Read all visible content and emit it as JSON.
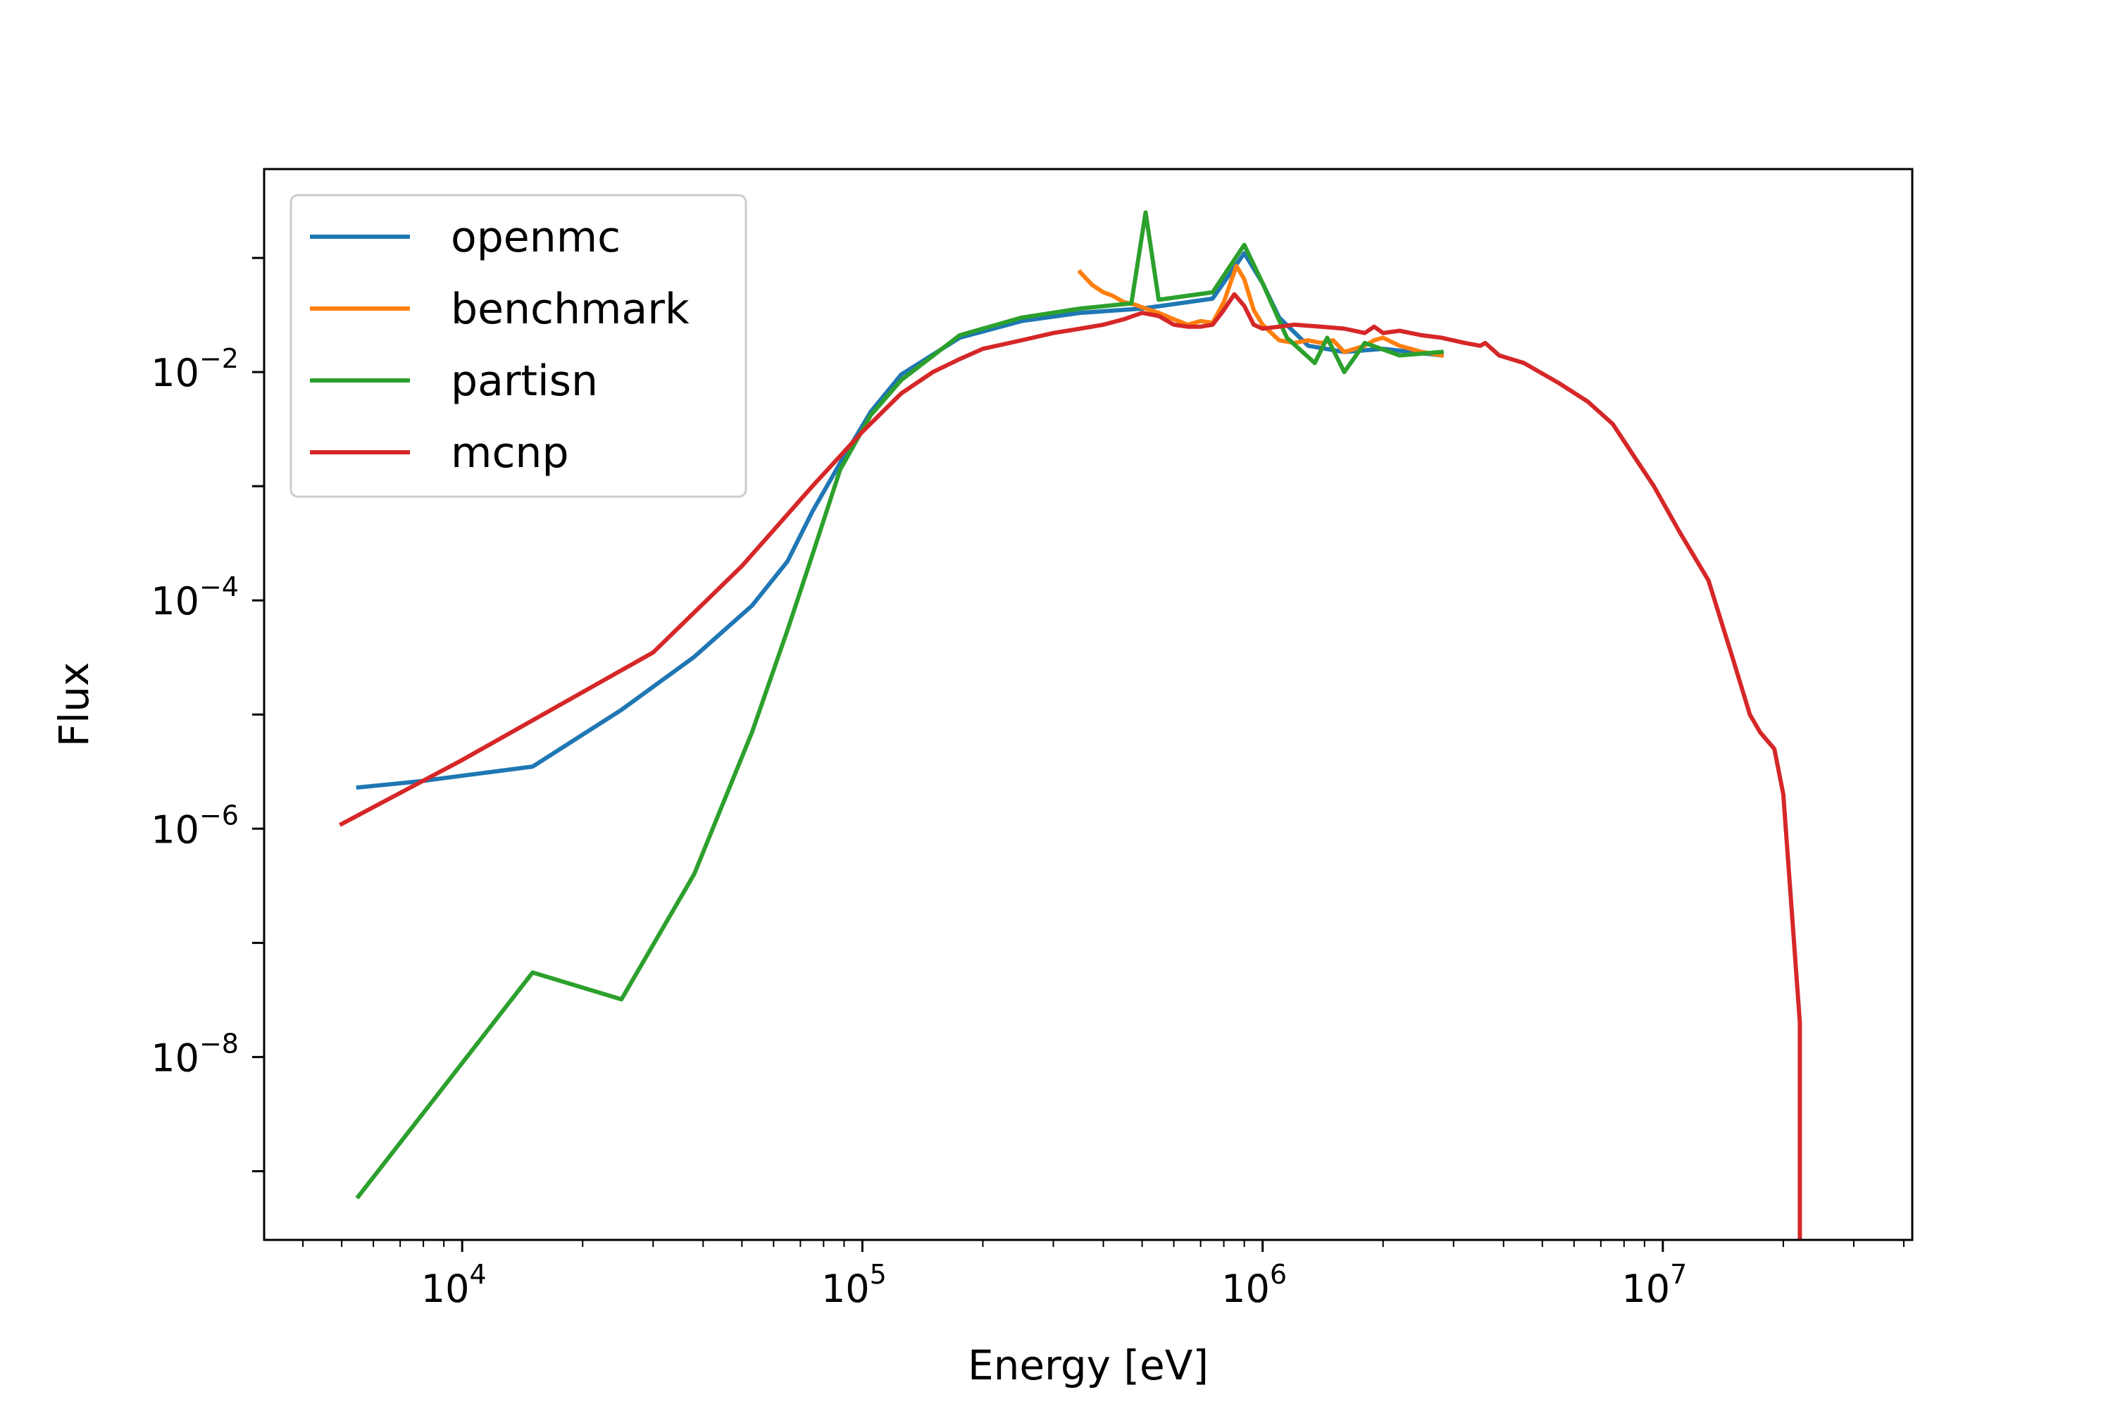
{
  "chart_data": {
    "type": "line",
    "title": "",
    "xlabel": "Energy [eV]",
    "ylabel": "Flux",
    "xscale": "log",
    "yscale": "log",
    "xlim": [
      3200,
      42000000
    ],
    "ylim": [
      2.5e-10,
      0.6
    ],
    "grid": false,
    "legend_position": "top-left",
    "x_ticks": [
      {
        "value": 10000,
        "base": "10",
        "exp": "4"
      },
      {
        "value": 100000,
        "base": "10",
        "exp": "5"
      },
      {
        "value": 1000000,
        "base": "10",
        "exp": "6"
      },
      {
        "value": 10000000,
        "base": "10",
        "exp": "7"
      }
    ],
    "y_ticks": [
      {
        "value": 0.01,
        "base": "10",
        "exp": "−2"
      },
      {
        "value": 0.0001,
        "base": "10",
        "exp": "−4"
      },
      {
        "value": 1e-06,
        "base": "10",
        "exp": "−6"
      },
      {
        "value": 1e-08,
        "base": "10",
        "exp": "−8"
      }
    ],
    "series": [
      {
        "name": "openmc",
        "color": "#1f77b4",
        "points": [
          [
            5500,
            2.3e-06
          ],
          [
            7800,
            2.6e-06
          ],
          [
            15000,
            3.5e-06
          ],
          [
            25000,
            1.1e-05
          ],
          [
            38000,
            3.2e-05
          ],
          [
            53000,
            9e-05
          ],
          [
            65000,
            0.00022
          ],
          [
            75000,
            0.0006
          ],
          [
            88000,
            0.0016
          ],
          [
            105000,
            0.0045
          ],
          [
            125000,
            0.0095
          ],
          [
            175000,
            0.02
          ],
          [
            250000,
            0.028
          ],
          [
            350000,
            0.033
          ],
          [
            500000,
            0.036
          ],
          [
            750000,
            0.044
          ],
          [
            900000,
            0.11
          ],
          [
            1000000,
            0.06
          ],
          [
            1100000,
            0.03
          ],
          [
            1300000,
            0.017
          ],
          [
            1600000,
            0.015
          ],
          [
            2000000,
            0.016
          ],
          [
            2800000,
            0.014
          ]
        ]
      },
      {
        "name": "benchmark",
        "color": "#ff7f0e",
        "points": [
          [
            350000,
            0.075
          ],
          [
            375000,
            0.058
          ],
          [
            400000,
            0.05
          ],
          [
            420000,
            0.047
          ],
          [
            450000,
            0.041
          ],
          [
            480000,
            0.039
          ],
          [
            510000,
            0.036
          ],
          [
            550000,
            0.033
          ],
          [
            600000,
            0.029
          ],
          [
            650000,
            0.026
          ],
          [
            700000,
            0.028
          ],
          [
            750000,
            0.027
          ],
          [
            800000,
            0.041
          ],
          [
            860000,
            0.085
          ],
          [
            900000,
            0.065
          ],
          [
            950000,
            0.035
          ],
          [
            1000000,
            0.026
          ],
          [
            1100000,
            0.019
          ],
          [
            1200000,
            0.018
          ],
          [
            1300000,
            0.019
          ],
          [
            1400000,
            0.018
          ],
          [
            1500000,
            0.019
          ],
          [
            1600000,
            0.015
          ],
          [
            1700000,
            0.016
          ],
          [
            1800000,
            0.017
          ],
          [
            1900000,
            0.019
          ],
          [
            2000000,
            0.02
          ],
          [
            2200000,
            0.017
          ],
          [
            2500000,
            0.015
          ],
          [
            2800000,
            0.014
          ]
        ]
      },
      {
        "name": "partisn",
        "color": "#2ca02c",
        "points": [
          [
            5500,
            6e-10
          ],
          [
            15000,
            5.5e-08
          ],
          [
            25000,
            3.2e-08
          ],
          [
            38000,
            4e-07
          ],
          [
            53000,
            7e-06
          ],
          [
            65000,
            5.5e-05
          ],
          [
            75000,
            0.00025
          ],
          [
            88000,
            0.0014
          ],
          [
            105000,
            0.0042
          ],
          [
            125000,
            0.0085
          ],
          [
            175000,
            0.021
          ],
          [
            250000,
            0.03
          ],
          [
            350000,
            0.036
          ],
          [
            470000,
            0.04
          ],
          [
            510000,
            0.25
          ],
          [
            550000,
            0.043
          ],
          [
            750000,
            0.05
          ],
          [
            900000,
            0.13
          ],
          [
            1000000,
            0.06
          ],
          [
            1150000,
            0.02
          ],
          [
            1350000,
            0.012
          ],
          [
            1450000,
            0.02
          ],
          [
            1600000,
            0.01
          ],
          [
            1800000,
            0.018
          ],
          [
            2200000,
            0.014
          ],
          [
            2800000,
            0.015
          ]
        ]
      },
      {
        "name": "mcnp",
        "color": "#d62728",
        "points": [
          [
            5000,
            1.1e-06
          ],
          [
            10000,
            4e-06
          ],
          [
            30000,
            3.5e-05
          ],
          [
            50000,
            0.0002
          ],
          [
            75000,
            0.001
          ],
          [
            100000,
            0.003
          ],
          [
            125000,
            0.0065
          ],
          [
            150000,
            0.01
          ],
          [
            175000,
            0.013
          ],
          [
            200000,
            0.016
          ],
          [
            250000,
            0.019
          ],
          [
            300000,
            0.022
          ],
          [
            350000,
            0.024
          ],
          [
            400000,
            0.026
          ],
          [
            450000,
            0.029
          ],
          [
            500000,
            0.033
          ],
          [
            550000,
            0.031
          ],
          [
            600000,
            0.026
          ],
          [
            650000,
            0.025
          ],
          [
            700000,
            0.025
          ],
          [
            750000,
            0.026
          ],
          [
            800000,
            0.035
          ],
          [
            850000,
            0.048
          ],
          [
            900000,
            0.038
          ],
          [
            950000,
            0.026
          ],
          [
            1000000,
            0.024
          ],
          [
            1100000,
            0.025
          ],
          [
            1200000,
            0.026
          ],
          [
            1400000,
            0.025
          ],
          [
            1600000,
            0.024
          ],
          [
            1800000,
            0.022
          ],
          [
            1900000,
            0.025
          ],
          [
            2000000,
            0.022
          ],
          [
            2200000,
            0.023
          ],
          [
            2500000,
            0.021
          ],
          [
            2800000,
            0.02
          ],
          [
            3200000,
            0.018
          ],
          [
            3500000,
            0.017
          ],
          [
            3600000,
            0.018
          ],
          [
            3900000,
            0.014
          ],
          [
            4500000,
            0.012
          ],
          [
            5500000,
            0.008
          ],
          [
            6500000,
            0.0055
          ],
          [
            7500000,
            0.0035
          ],
          [
            8500000,
            0.0018
          ],
          [
            9500000,
            0.001
          ],
          [
            11000000,
            0.0004
          ],
          [
            13000000,
            0.00015
          ],
          [
            15000000,
            3e-05
          ],
          [
            16500000,
            1e-05
          ],
          [
            17500000,
            7e-06
          ],
          [
            19000000,
            5e-06
          ],
          [
            20000000,
            2e-06
          ],
          [
            22000000,
            2e-08
          ],
          [
            22000000,
            2.5e-10
          ]
        ]
      }
    ]
  }
}
